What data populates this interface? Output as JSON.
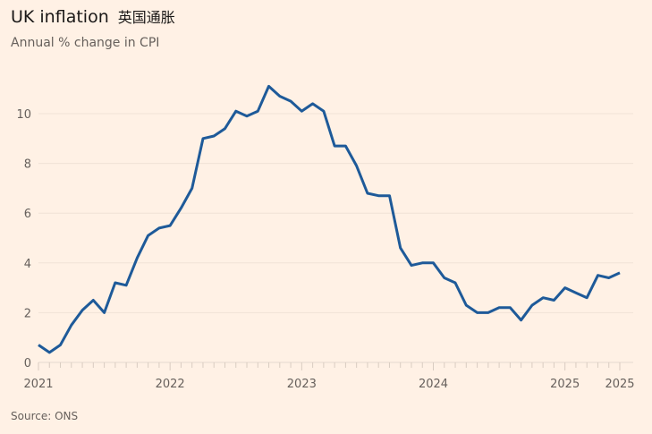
{
  "title": "UK inflation",
  "title_zh": "英国通胀",
  "subtitle": "Annual % change in CPI",
  "source": "Source: ONS",
  "colors": {
    "line": "#1e5a99",
    "background": "#fff1e5",
    "grid": "#f0e2d6"
  },
  "chart_data": {
    "type": "line",
    "title": "UK inflation",
    "ylabel": "Annual % change in CPI",
    "xlabel": "",
    "ylim": [
      0,
      11.5
    ],
    "yticks": [
      0,
      2,
      4,
      6,
      8,
      10
    ],
    "grid": true,
    "x_start": "2021-01",
    "x_tick_labels": [
      {
        "index": 0,
        "label": "2021"
      },
      {
        "index": 12,
        "label": "2022"
      },
      {
        "index": 24,
        "label": "2023"
      },
      {
        "index": 36,
        "label": "2024"
      },
      {
        "index": 48,
        "label": "2025"
      },
      {
        "index": 53,
        "label": "2025"
      }
    ],
    "series": [
      {
        "name": "CPI",
        "values": [
          0.7,
          0.4,
          0.7,
          1.5,
          2.1,
          2.5,
          2.0,
          3.2,
          3.1,
          4.2,
          5.1,
          5.4,
          5.5,
          6.2,
          7.0,
          9.0,
          9.1,
          9.4,
          10.1,
          9.9,
          10.1,
          11.1,
          10.7,
          10.5,
          10.1,
          10.4,
          10.1,
          8.7,
          8.7,
          7.9,
          6.8,
          6.7,
          6.7,
          4.6,
          3.9,
          4.0,
          4.0,
          3.4,
          3.2,
          2.3,
          2.0,
          2.0,
          2.2,
          2.2,
          1.7,
          2.3,
          2.6,
          2.5,
          3.0,
          2.8,
          2.6,
          3.5,
          3.4,
          3.6
        ]
      }
    ]
  }
}
